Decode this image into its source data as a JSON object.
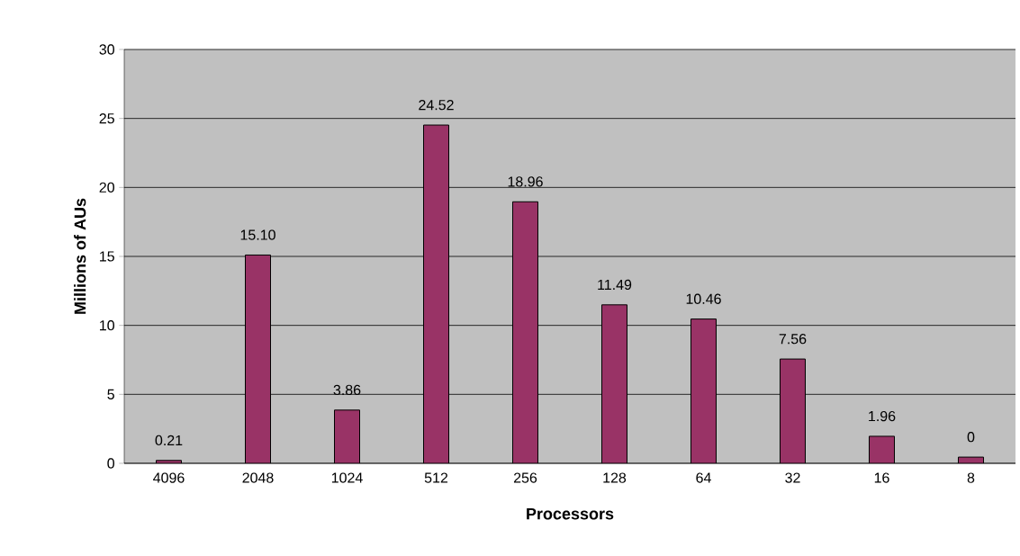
{
  "chart_data": {
    "type": "bar",
    "xlabel": "Processors",
    "ylabel": "Millions of AUs",
    "categories": [
      "4096",
      "2048",
      "1024",
      "512",
      "256",
      "128",
      "64",
      "32",
      "16",
      "8"
    ],
    "values": [
      0.21,
      15.1,
      3.86,
      24.52,
      18.96,
      11.49,
      10.46,
      7.56,
      1.96,
      0.45
    ],
    "value_labels": [
      "0.21",
      "15.10",
      "3.86",
      "24.52",
      "18.96",
      "11.49",
      "10.46",
      "7.56",
      "1.96",
      "0"
    ],
    "color": "#993366",
    "ylim": [
      0,
      30
    ],
    "yticks": [
      0,
      5,
      10,
      15,
      20,
      25,
      30
    ],
    "grid": "y"
  }
}
